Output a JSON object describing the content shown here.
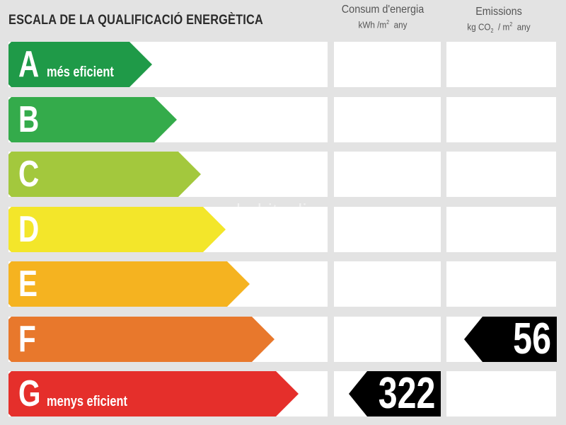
{
  "title": "ESCALA DE LA QUALIFICACIÓ ENERGÈTICA",
  "columns": {
    "consum": {
      "label": "Consum d'energia",
      "unit_pre": "kWh /m",
      "unit_sup": "2",
      "unit_post": "  any"
    },
    "emissions": {
      "label": "Emissions",
      "unit_pre": "kg CO",
      "unit_sub": "2",
      "unit_mid": "  / m",
      "unit_sup": "2",
      "unit_post": "  any"
    }
  },
  "scale": [
    {
      "letter": "A",
      "label": "més eficient",
      "color": "#1f9a48"
    },
    {
      "letter": "B",
      "label": "",
      "color": "#34ab4b"
    },
    {
      "letter": "C",
      "label": "",
      "color": "#a3c83d"
    },
    {
      "letter": "D",
      "label": "",
      "color": "#f3e62a"
    },
    {
      "letter": "E",
      "label": "",
      "color": "#f5b320"
    },
    {
      "letter": "F",
      "label": "",
      "color": "#e8782c"
    },
    {
      "letter": "G",
      "label": "menys eficient",
      "color": "#e52f2b"
    }
  ],
  "ratings": {
    "consum": {
      "class": "G",
      "value": "322"
    },
    "emissions": {
      "class": "F",
      "value": "56"
    }
  },
  "watermark": "habitaclia"
}
